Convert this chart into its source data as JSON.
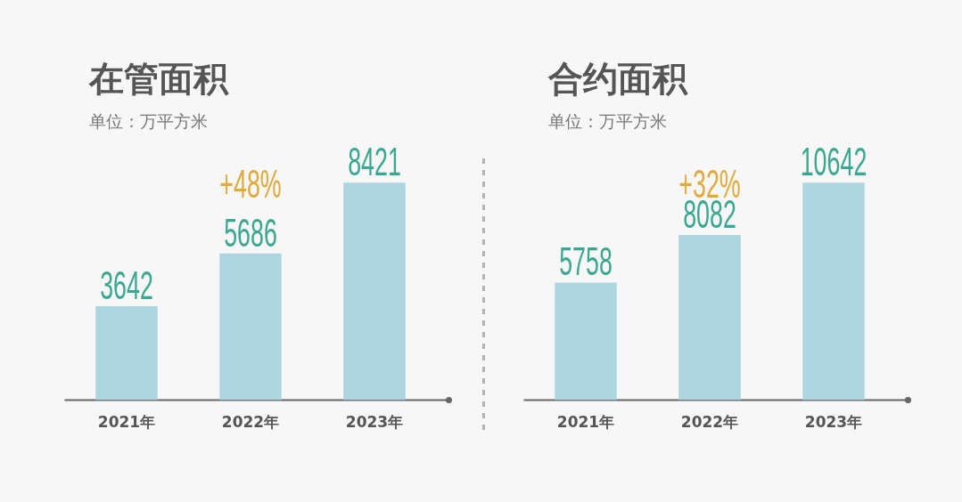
{
  "chart_data": [
    {
      "type": "bar",
      "title": "在管面积",
      "subtitle": "单位：万平方米",
      "categories": [
        "2021年",
        "2022年",
        "2023年"
      ],
      "values": [
        3642,
        5686,
        8421
      ],
      "color": "#aed6e0",
      "data_labels": true,
      "tick_labels": "x",
      "annotations": [
        "+48%"
      ]
    },
    {
      "type": "bar",
      "title": "合约面积",
      "subtitle": "单位：万平方米",
      "categories": [
        "2021年",
        "2022年",
        "2023年"
      ],
      "values": [
        5758,
        8082,
        10642
      ],
      "color": "#aed6e0",
      "data_labels": true,
      "tick_labels": "x",
      "annotations": [
        "+32%"
      ]
    }
  ]
}
